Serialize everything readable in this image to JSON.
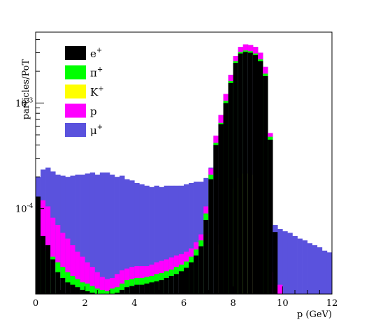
{
  "chart_data": {
    "type": "bar",
    "stacked": true,
    "xlabel": "p (GeV)",
    "ylabel": "particles/PoT",
    "xlim": [
      0,
      12
    ],
    "ylim": [
      1.55e-05,
      0.0047
    ],
    "yscale": "log",
    "bin_width": 0.2,
    "x_ticks": [
      "0",
      "2",
      "4",
      "6",
      "8",
      "10",
      "12"
    ],
    "y_ticks": [
      {
        "value": 0.0001,
        "base": "10",
        "exp": "-4"
      },
      {
        "value": 0.001,
        "base": "10",
        "exp": "-3"
      }
    ],
    "legend_position": "top-left",
    "colors": {
      "e+": "#000000",
      "pi+": "#00ff00",
      "K+": "#ffff00",
      "p": "#ff00ff",
      "mu+": "#5a52dd"
    },
    "legend": [
      {
        "key": "e+",
        "base": "e",
        "sup": "+",
        "color": "#000000"
      },
      {
        "key": "pi+",
        "base": "π",
        "sup": "+",
        "color": "#00ff00"
      },
      {
        "key": "K+",
        "base": "K",
        "sup": "+",
        "color": "#ffff00"
      },
      {
        "key": "p",
        "base": "p",
        "sup": "",
        "color": "#ff00ff"
      },
      {
        "key": "mu+",
        "base": "μ",
        "sup": "+",
        "color": "#5a52dd"
      }
    ],
    "stack_order": [
      "mu+",
      "p",
      "K+",
      "pi+",
      "e+"
    ],
    "bins": [
      {
        "x": 0.1,
        "e+": 0.00013,
        "pi+": 3.3e-05,
        "K+": 0,
        "p": 3.4e-05,
        "mu+": 0.0002
      },
      {
        "x": 0.3,
        "e+": 5.5e-05,
        "pi+": 4.2e-05,
        "K+": 0,
        "p": 0.00012,
        "mu+": 0.000235
      },
      {
        "x": 0.5,
        "e+": 4.5e-05,
        "pi+": 4e-05,
        "K+": 0,
        "p": 0.000105,
        "mu+": 0.000245
      },
      {
        "x": 0.7,
        "e+": 3.3e-05,
        "pi+": 3.5e-05,
        "K+": 0,
        "p": 8.2e-05,
        "mu+": 0.000225
      },
      {
        "x": 0.9,
        "e+": 2.5e-05,
        "pi+": 3.1e-05,
        "K+": 0,
        "p": 7e-05,
        "mu+": 0.00021
      },
      {
        "x": 1.1,
        "e+": 2.2e-05,
        "pi+": 2.8e-05,
        "K+": 0,
        "p": 5.9e-05,
        "mu+": 0.000205
      },
      {
        "x": 1.3,
        "e+": 2e-05,
        "pi+": 2.5e-05,
        "K+": 0,
        "p": 5.2e-05,
        "mu+": 0.0002
      },
      {
        "x": 1.5,
        "e+": 1.9e-05,
        "pi+": 2.3e-05,
        "K+": 0,
        "p": 4.5e-05,
        "mu+": 0.000205
      },
      {
        "x": 1.7,
        "e+": 1.8e-05,
        "pi+": 2.15e-05,
        "K+": 0,
        "p": 3.9e-05,
        "mu+": 0.00021
      },
      {
        "x": 1.9,
        "e+": 1.7e-05,
        "pi+": 2e-05,
        "K+": 0,
        "p": 3.5e-05,
        "mu+": 0.00021
      },
      {
        "x": 2.1,
        "e+": 1.65e-05,
        "pi+": 1.95e-05,
        "K+": 0,
        "p": 3.1e-05,
        "mu+": 0.000215
      },
      {
        "x": 2.3,
        "e+": 1.6e-05,
        "pi+": 1.85e-05,
        "K+": 0,
        "p": 2.8e-05,
        "mu+": 0.00022
      },
      {
        "x": 2.5,
        "e+": 1.55e-05,
        "pi+": 1.75e-05,
        "K+": 0,
        "p": 2.5e-05,
        "mu+": 0.00021
      },
      {
        "x": 2.7,
        "e+": 1.5e-05,
        "pi+": 1.7e-05,
        "K+": 0,
        "p": 2.25e-05,
        "mu+": 0.00022
      },
      {
        "x": 2.9,
        "e+": 1.5e-05,
        "pi+": 1.65e-05,
        "K+": 0,
        "p": 2.15e-05,
        "mu+": 0.00022
      },
      {
        "x": 3.1,
        "e+": 1.55e-05,
        "pi+": 1.75e-05,
        "K+": 0,
        "p": 2.2e-05,
        "mu+": 0.00021
      },
      {
        "x": 3.3,
        "e+": 1.6e-05,
        "pi+": 1.8e-05,
        "K+": 0,
        "p": 2.4e-05,
        "mu+": 0.0002
      },
      {
        "x": 3.5,
        "e+": 1.7e-05,
        "pi+": 1.95e-05,
        "K+": 0,
        "p": 2.6e-05,
        "mu+": 0.000205
      },
      {
        "x": 3.7,
        "e+": 1.8e-05,
        "pi+": 2.1e-05,
        "K+": 0,
        "p": 2.7e-05,
        "mu+": 0.00019
      },
      {
        "x": 3.9,
        "e+": 1.85e-05,
        "pi+": 2.15e-05,
        "K+": 0,
        "p": 2.8e-05,
        "mu+": 0.000185
      },
      {
        "x": 4.1,
        "e+": 1.9e-05,
        "pi+": 2.2e-05,
        "K+": 0,
        "p": 2.85e-05,
        "mu+": 0.000175
      },
      {
        "x": 4.3,
        "e+": 1.9e-05,
        "pi+": 2.2e-05,
        "K+": 0,
        "p": 2.85e-05,
        "mu+": 0.00017
      },
      {
        "x": 4.5,
        "e+": 1.95e-05,
        "pi+": 2.25e-05,
        "K+": 0,
        "p": 2.85e-05,
        "mu+": 0.000165
      },
      {
        "x": 4.7,
        "e+": 2e-05,
        "pi+": 2.3e-05,
        "K+": 0,
        "p": 2.95e-05,
        "mu+": 0.00016
      },
      {
        "x": 4.9,
        "e+": 2.05e-05,
        "pi+": 2.4e-05,
        "K+": 0,
        "p": 3.1e-05,
        "mu+": 0.000165
      },
      {
        "x": 5.1,
        "e+": 2.1e-05,
        "pi+": 2.45e-05,
        "K+": 0,
        "p": 3.2e-05,
        "mu+": 0.00016
      },
      {
        "x": 5.3,
        "e+": 2.2e-05,
        "pi+": 2.55e-05,
        "K+": 0,
        "p": 3.3e-05,
        "mu+": 0.000165
      },
      {
        "x": 5.5,
        "e+": 2.3e-05,
        "pi+": 2.65e-05,
        "K+": 0,
        "p": 3.45e-05,
        "mu+": 0.000165
      },
      {
        "x": 5.7,
        "e+": 2.4e-05,
        "pi+": 2.8e-05,
        "K+": 0,
        "p": 3.6e-05,
        "mu+": 0.000165
      },
      {
        "x": 5.9,
        "e+": 2.55e-05,
        "pi+": 2.95e-05,
        "K+": 0,
        "p": 3.7e-05,
        "mu+": 0.000165
      },
      {
        "x": 6.1,
        "e+": 2.75e-05,
        "pi+": 3.15e-05,
        "K+": 0,
        "p": 3.9e-05,
        "mu+": 0.00017
      },
      {
        "x": 6.3,
        "e+": 3.1e-05,
        "pi+": 3.5e-05,
        "K+": 0,
        "p": 4.2e-05,
        "mu+": 0.000175
      },
      {
        "x": 6.5,
        "e+": 3.6e-05,
        "pi+": 4.1e-05,
        "K+": 0,
        "p": 4.8e-05,
        "mu+": 0.00018
      },
      {
        "x": 6.7,
        "e+": 4.4e-05,
        "pi+": 5e-05,
        "K+": 0,
        "p": 5.7e-05,
        "mu+": 0.00018
      },
      {
        "x": 6.9,
        "e+": 7.8e-05,
        "pi+": 9e-05,
        "K+": 0,
        "p": 0.000105,
        "mu+": 0.000195
      },
      {
        "x": 7.1,
        "e+": 0.00019,
        "pi+": 0.00021,
        "K+": 0,
        "p": 0.00024,
        "mu+": 0.000245
      },
      {
        "x": 7.3,
        "e+": 0.0004,
        "pi+": 0.00042,
        "K+": 0,
        "p": 0.00049,
        "mu+": 0.00049
      },
      {
        "x": 7.5,
        "e+": 0.00063,
        "pi+": 0.00065,
        "K+": 4.6e-05,
        "p": 0.00077,
        "mu+": 0.00077
      },
      {
        "x": 7.7,
        "e+": 0.001,
        "pi+": 0.00105,
        "K+": 8e-05,
        "p": 0.00122,
        "mu+": 0.00122
      },
      {
        "x": 7.9,
        "e+": 0.00155,
        "pi+": 0.00162,
        "K+": 0.000115,
        "p": 0.00185,
        "mu+": 0.00185
      },
      {
        "x": 8.1,
        "e+": 0.0024,
        "pi+": 0.0025,
        "K+": 0.000155,
        "p": 0.0028,
        "mu+": 0.0028
      },
      {
        "x": 8.3,
        "e+": 0.00295,
        "pi+": 0.00305,
        "K+": 0.000195,
        "p": 0.0034,
        "mu+": 0.0034
      },
      {
        "x": 8.5,
        "e+": 0.00305,
        "pi+": 0.00315,
        "K+": 0.000215,
        "p": 0.0036,
        "mu+": 0.0036
      },
      {
        "x": 8.7,
        "e+": 0.003,
        "pi+": 0.0031,
        "K+": 0.000215,
        "p": 0.00355,
        "mu+": 0.00355
      },
      {
        "x": 8.9,
        "e+": 0.00285,
        "pi+": 0.00295,
        "K+": 0.00021,
        "p": 0.0034,
        "mu+": 0.0034
      },
      {
        "x": 9.1,
        "e+": 0.0025,
        "pi+": 0.0026,
        "K+": 0.000195,
        "p": 0.003,
        "mu+": 0.003
      },
      {
        "x": 9.3,
        "e+": 0.0018,
        "pi+": 0.0019,
        "K+": 0.00016,
        "p": 0.0022,
        "mu+": 0.0022
      },
      {
        "x": 9.5,
        "e+": 0.00045,
        "pi+": 0.00048,
        "K+": 4e-05,
        "p": 0.00052,
        "mu+": 0.00052
      },
      {
        "x": 9.7,
        "e+": 6e-05,
        "pi+": 1.3e-05,
        "K+": 0,
        "p": 2.5e-05,
        "mu+": 7e-05
      },
      {
        "x": 9.9,
        "e+": 1.5e-05,
        "pi+": 1.2e-05,
        "K+": 0,
        "p": 1.9e-05,
        "mu+": 6.4e-05
      },
      {
        "x": 10.1,
        "e+": 0,
        "pi+": 0,
        "K+": 0,
        "p": 0,
        "mu+": 6.1e-05
      },
      {
        "x": 10.3,
        "e+": 0,
        "pi+": 0,
        "K+": 0,
        "p": 0,
        "mu+": 5.9e-05
      },
      {
        "x": 10.5,
        "e+": 0,
        "pi+": 0,
        "K+": 0,
        "p": 0,
        "mu+": 5.5e-05
      },
      {
        "x": 10.7,
        "e+": 0,
        "pi+": 0,
        "K+": 0,
        "p": 0,
        "mu+": 5.2e-05
      },
      {
        "x": 10.9,
        "e+": 0,
        "pi+": 0,
        "K+": 0,
        "p": 0,
        "mu+": 5e-05
      },
      {
        "x": 11.1,
        "e+": 0,
        "pi+": 0,
        "K+": 0,
        "p": 0,
        "mu+": 4.7e-05
      },
      {
        "x": 11.3,
        "e+": 0,
        "pi+": 0,
        "K+": 0,
        "p": 0,
        "mu+": 4.5e-05
      },
      {
        "x": 11.5,
        "e+": 0,
        "pi+": 0,
        "K+": 0,
        "p": 0,
        "mu+": 4.3e-05
      },
      {
        "x": 11.7,
        "e+": 0,
        "pi+": 0,
        "K+": 0,
        "p": 0,
        "mu+": 4e-05
      },
      {
        "x": 11.9,
        "e+": 0,
        "pi+": 0,
        "K+": 0,
        "p": 0,
        "mu+": 3.85e-05
      }
    ]
  }
}
